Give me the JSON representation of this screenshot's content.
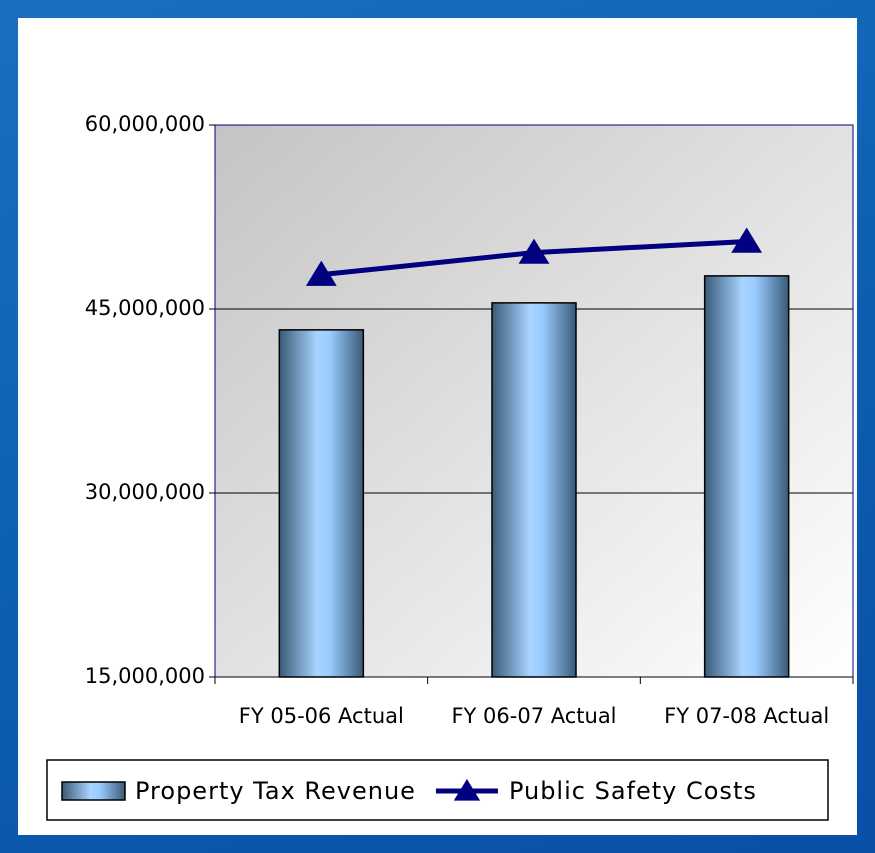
{
  "chart_data": {
    "type": "bar",
    "categories": [
      "FY 05-06 Actual",
      "FY 06-07 Actual",
      "FY 07-08 Actual"
    ],
    "series": [
      {
        "name": "Property Tax Revenue",
        "type": "bar",
        "color": "#99ccff",
        "values": [
          43300000,
          45500000,
          47700000
        ]
      },
      {
        "name": "Public Safety Costs",
        "type": "line",
        "color": "#000080",
        "values": [
          47800000,
          49600000,
          50500000
        ]
      }
    ],
    "ylim": [
      15000000,
      60000000
    ],
    "yticks": [
      {
        "value": 15000000,
        "label": "15,000,000"
      },
      {
        "value": 30000000,
        "label": "30,000,000"
      },
      {
        "value": 45000000,
        "label": "45,000,000"
      },
      {
        "value": 60000000,
        "label": "60,000,000"
      }
    ],
    "grid": true,
    "legend": "bottom"
  }
}
